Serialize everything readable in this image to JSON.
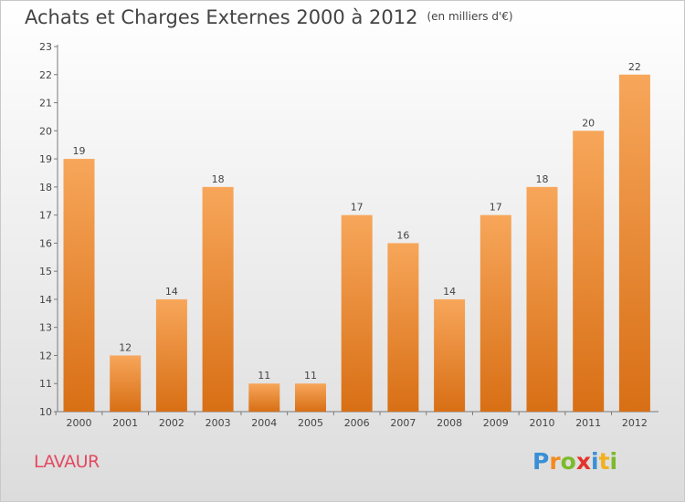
{
  "title": "Achats et Charges Externes 2000 à 2012",
  "unit": "(en milliers d'€)",
  "commune": "LAVAUR",
  "logo": {
    "text": "Proxiti",
    "letters": [
      {
        "ch": "P",
        "color": "#3a8fd6"
      },
      {
        "ch": "r",
        "color": "#f28a1e"
      },
      {
        "ch": "o",
        "color": "#7cbb2a"
      },
      {
        "ch": "x",
        "color": "#e2342b"
      },
      {
        "ch": "i",
        "color": "#3a8fd6"
      },
      {
        "ch": "t",
        "color": "#f2b01e"
      },
      {
        "ch": "i",
        "color": "#7cbb2a"
      }
    ]
  },
  "colors": {
    "bar_top": "#f7a65a",
    "bar_bottom": "#d86f15",
    "axis": "#7a7a7a",
    "text": "#444444",
    "commune": "#e24a61"
  },
  "chart_data": {
    "type": "bar",
    "title": "Achats et Charges Externes 2000 à 2012",
    "unit": "(en milliers d'€)",
    "categories": [
      "2000",
      "2001",
      "2002",
      "2003",
      "2004",
      "2005",
      "2006",
      "2007",
      "2008",
      "2009",
      "2010",
      "2011",
      "2012"
    ],
    "values": [
      19,
      12,
      14,
      18,
      11,
      11,
      17,
      16,
      14,
      17,
      18,
      20,
      22
    ],
    "ylim": [
      10,
      23
    ],
    "yticks": [
      10,
      11,
      12,
      13,
      14,
      15,
      16,
      17,
      18,
      19,
      20,
      21,
      22,
      23
    ],
    "grid": false,
    "legend": "none"
  }
}
